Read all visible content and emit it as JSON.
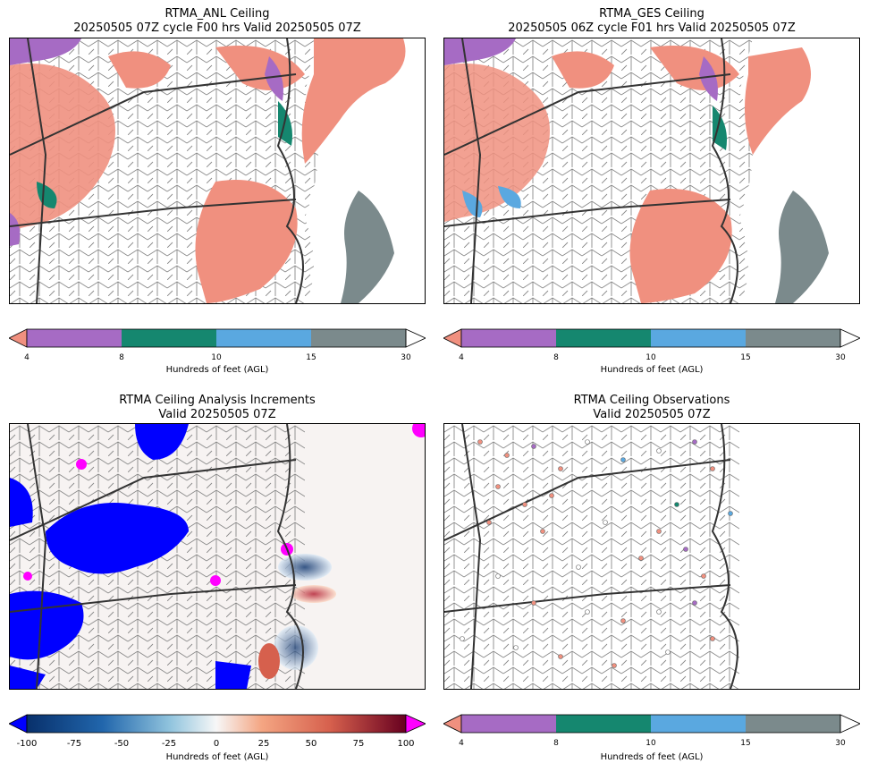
{
  "panels": [
    {
      "id": "anl",
      "title_line1": "RTMA_ANL Ceiling",
      "title_line2": "20250505 07Z cycle F00 hrs Valid 20250505 07Z"
    },
    {
      "id": "ges",
      "title_line1": "RTMA_GES Ceiling",
      "title_line2": "20250505 06Z cycle F01 hrs Valid 20250505 07Z"
    },
    {
      "id": "inc",
      "title_line1": "RTMA Ceiling Analysis Increments",
      "title_line2": "Valid 20250505 07Z"
    },
    {
      "id": "obs",
      "title_line1": "RTMA Ceiling Observations",
      "title_line2": "Valid 20250505 07Z"
    }
  ],
  "ceiling_colorbar": {
    "ticks": [
      "4",
      "8",
      "10",
      "15",
      "30"
    ],
    "label": "Hundreds of feet (AGL)",
    "colors": {
      "under": "#f0907f",
      "c4_8": "#a66bc4",
      "c8_10": "#15876f",
      "c10_15": "#5aa8e0",
      "c15_30": "#7b8a8c",
      "over": "#ffffff"
    }
  },
  "increment_colorbar": {
    "ticks": [
      "-100",
      "-75",
      "-50",
      "-25",
      "0",
      "25",
      "50",
      "75",
      "100"
    ],
    "label": "Hundreds of feet (AGL)",
    "colors": {
      "under": "#0000ff",
      "over": "#ff00ff",
      "low": "#08306b",
      "mid": "#f7f7f7",
      "high": "#67001f"
    }
  }
}
